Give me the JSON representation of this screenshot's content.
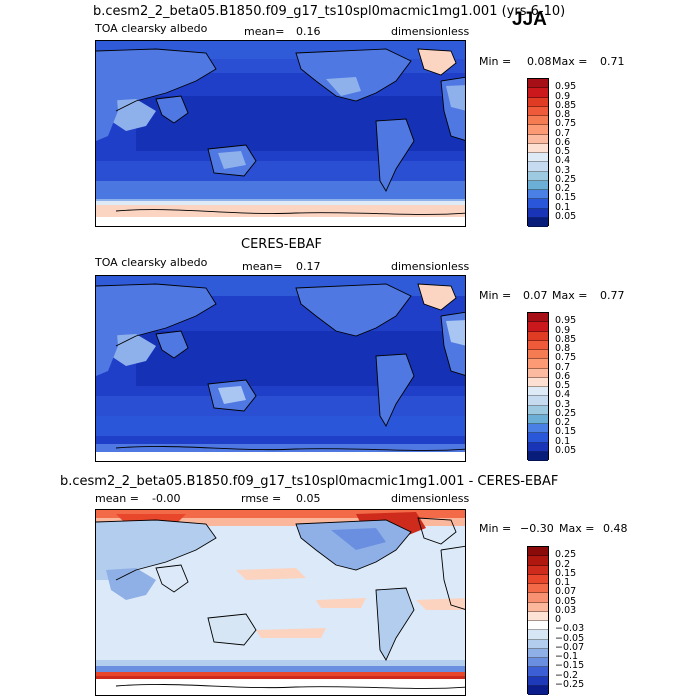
{
  "season": "JJA",
  "panel1": {
    "case_title": "b.cesm2_2_beta05.B1850.f09_g17_ts10spl0macmic1mg1.001 (yrs 6-10)",
    "var_label": "TOA clearsky albedo",
    "mean_label": "mean=",
    "mean_value": "0.16",
    "units": "dimensionless",
    "min_label": "Min =",
    "min_value": "0.08",
    "max_label": "Max =",
    "max_value": "0.71",
    "ticks": [
      "0.95",
      "0.9",
      "0.85",
      "0.8",
      "0.75",
      "0.7",
      "0.6",
      "0.5",
      "0.4",
      "0.3",
      "0.25",
      "0.2",
      "0.15",
      "0.1",
      "0.05"
    ],
    "colors": [
      "#a50f15",
      "#cb181d",
      "#e03c23",
      "#ef5a3a",
      "#f57b52",
      "#fb9a75",
      "#fcbba1",
      "#fde0d2",
      "#deebf7",
      "#c6dbef",
      "#9ecae1",
      "#6baed6",
      "#4a80e6",
      "#2a56d9",
      "#1a34b8",
      "#081d7a"
    ]
  },
  "panel2": {
    "case_title": "CERES-EBAF",
    "var_label": "TOA clearsky albedo",
    "mean_label": "mean=",
    "mean_value": "0.17",
    "units": "dimensionless",
    "min_label": "Min =",
    "min_value": "0.07",
    "max_label": "Max =",
    "max_value": "0.77",
    "ticks": [
      "0.95",
      "0.9",
      "0.85",
      "0.8",
      "0.75",
      "0.7",
      "0.6",
      "0.5",
      "0.4",
      "0.3",
      "0.25",
      "0.2",
      "0.15",
      "0.1",
      "0.05"
    ],
    "colors": [
      "#a50f15",
      "#cb181d",
      "#e03c23",
      "#ef5a3a",
      "#f57b52",
      "#fb9a75",
      "#fcbba1",
      "#fde0d2",
      "#deebf7",
      "#c6dbef",
      "#9ecae1",
      "#6baed6",
      "#4a80e6",
      "#2a56d9",
      "#1a34b8",
      "#081d7a"
    ]
  },
  "panel3": {
    "case_title": "b.cesm2_2_beta05.B1850.f09_g17_ts10spl0macmic1mg1.001 - CERES-EBAF",
    "mean_label": "mean =",
    "mean_value": "-0.00",
    "rmse_label": "rmse =",
    "rmse_value": "0.05",
    "units": "dimensionless",
    "min_label": "Min =",
    "min_value": "−0.30",
    "max_label": "Max =",
    "max_value": "0.48",
    "ticks": [
      "0.25",
      "0.2",
      "0.15",
      "0.1",
      "0.07",
      "0.05",
      "0.03",
      "0",
      "−0.03",
      "−0.05",
      "−0.07",
      "−0.1",
      "−0.15",
      "−0.2",
      "−0.25"
    ],
    "colors": [
      "#8b0a0a",
      "#b0170f",
      "#cf2b1c",
      "#e8472c",
      "#f26a47",
      "#f79171",
      "#fbb79c",
      "#fde3d6",
      "#ffffff",
      "#d6e6f5",
      "#b3cdee",
      "#8fb0e6",
      "#6a8fe0",
      "#3d5fd6",
      "#1f3ab8",
      "#0b1d8a"
    ]
  },
  "map_colors": {
    "ocean_abs": "#1f3fc9",
    "ocean_abs_dark": "#1330b3",
    "ocean_abs_mid": "#2f5ad8",
    "land_abs": "#4f78e2",
    "land_abs_light": "#8eb1ec",
    "desert_abs": "#a9c6f2",
    "ice_abs": "#fcd5c2",
    "ice_abs_red": "#f9b6a0",
    "diff_bg": "#dce9f8",
    "diff_pos": "#fbd3bf",
    "diff_pos_strong": "#e0432a",
    "diff_neg": "#8fb0e6",
    "diff_neg_strong": "#3d5fd6"
  }
}
